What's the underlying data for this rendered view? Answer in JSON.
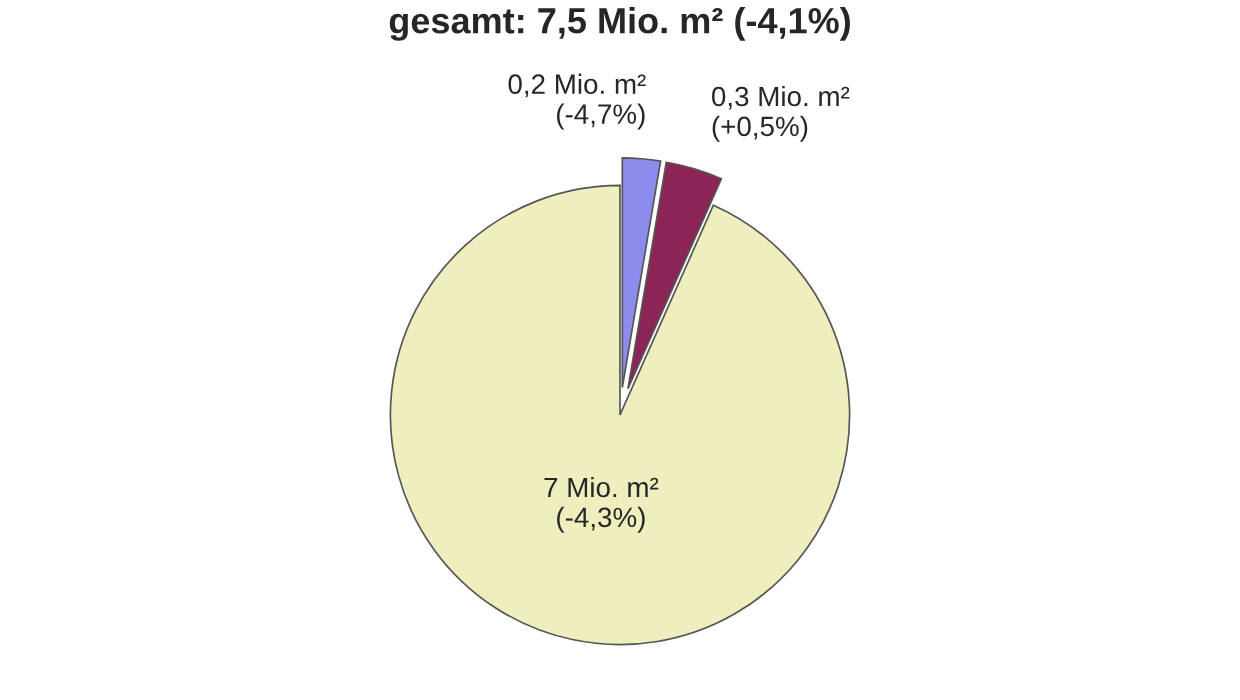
{
  "chart_data": {
    "type": "pie",
    "title": "gesamt: 7,5 Mio. m² (-4,1%)",
    "categories": [
      null,
      null,
      null
    ],
    "values": [
      0.2,
      0.3,
      7
    ],
    "colors": [
      "#8c8cec",
      "#8c2456",
      "#eeeebe"
    ],
    "value_labels": [
      "0,2 Mio. m²\n(-4,7%)",
      "0,3 Mio. m²\n(+0,5%)",
      "7 Mio. m²\n(-4,3%)"
    ],
    "legend": false
  }
}
